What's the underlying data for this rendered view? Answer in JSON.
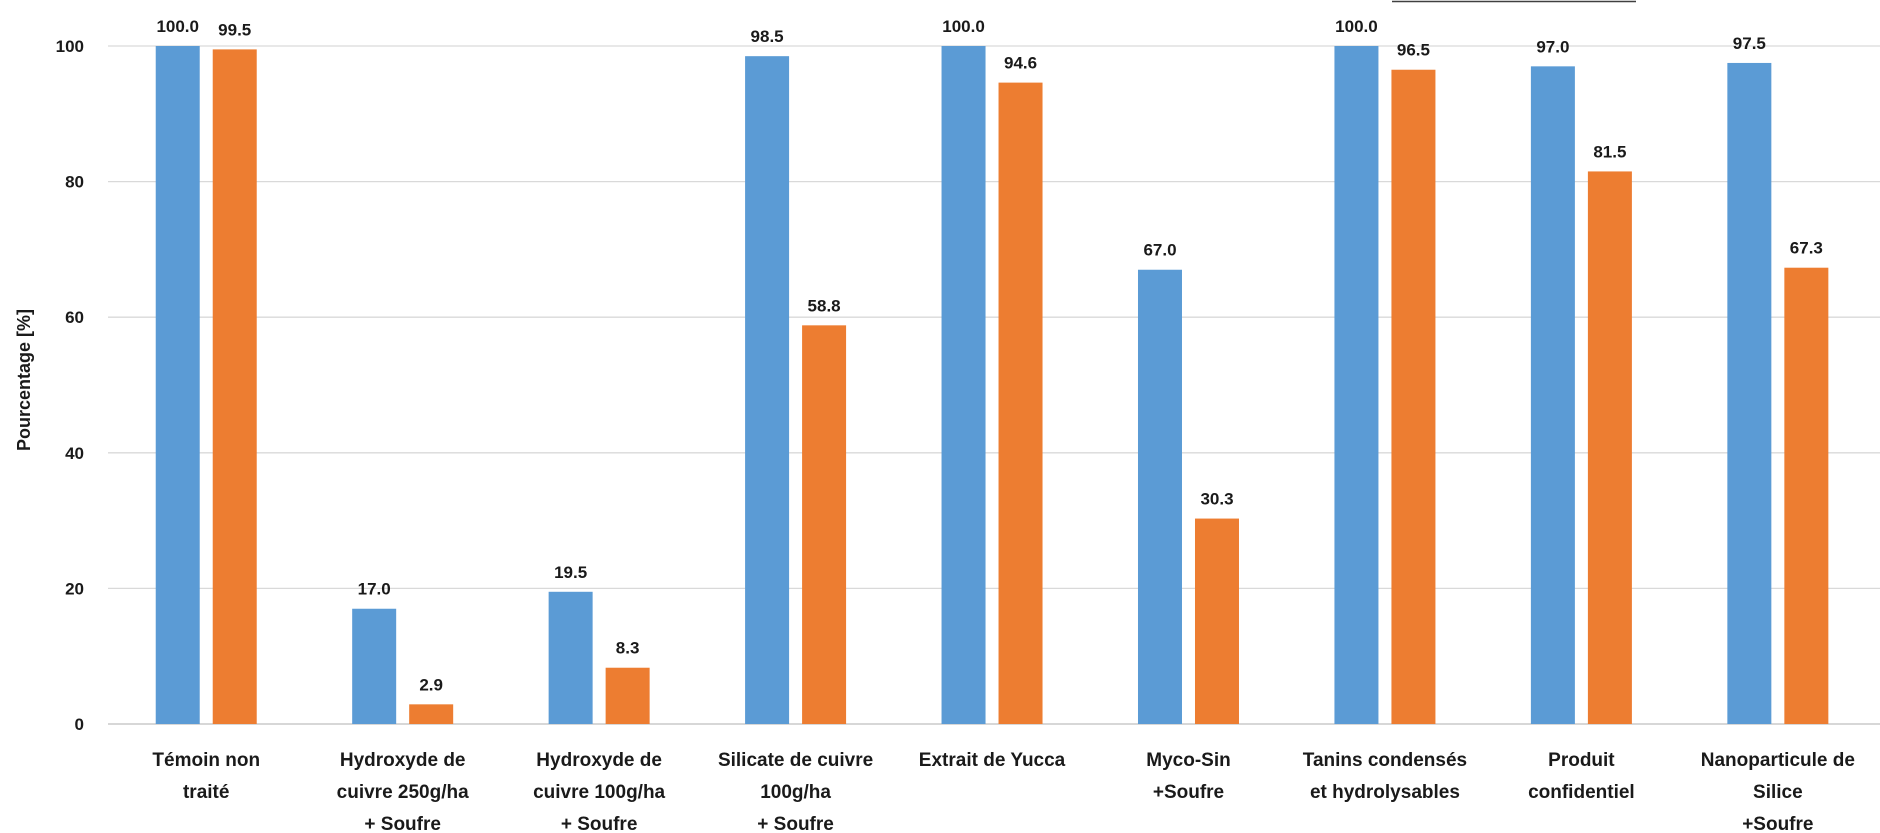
{
  "chart_data": {
    "type": "bar",
    "ylabel": "Pourcentage [%]",
    "ylim": [
      0,
      100
    ],
    "yticks": [
      "0",
      "20",
      "40",
      "60",
      "80",
      "100"
    ],
    "grid": true,
    "categories": [
      [
        "Témoin non",
        "traité"
      ],
      [
        "Hydroxyde de",
        "cuivre 250g/ha",
        "+ Soufre"
      ],
      [
        "Hydroxyde de",
        "cuivre 100g/ha",
        "+ Soufre"
      ],
      [
        "Silicate de cuivre",
        "100g/ha",
        "+ Soufre"
      ],
      [
        "Extrait de Yucca"
      ],
      [
        "Myco-Sin",
        "+Soufre"
      ],
      [
        "Tanins condensés",
        "et hydrolysables"
      ],
      [
        "Produit",
        "confidentiel"
      ],
      [
        "Nanoparticule de",
        "Silice",
        "+Soufre"
      ]
    ],
    "series": [
      {
        "color": "#5B9BD5",
        "values": [
          100.0,
          17.0,
          19.5,
          98.5,
          100.0,
          67.0,
          100.0,
          97.0,
          97.5
        ],
        "labels": [
          "100.0",
          "17.0",
          "19.5",
          "98.5",
          "100.0",
          "67.0",
          "100.0",
          "97.0",
          "97.5"
        ]
      },
      {
        "color": "#ED7D31",
        "values": [
          99.5,
          2.9,
          8.3,
          58.8,
          94.6,
          30.3,
          96.5,
          81.5,
          67.3
        ],
        "labels": [
          "99.5",
          "2.9",
          "8.3",
          "58.8",
          "94.6",
          "30.3",
          "96.5",
          "81.5",
          "67.3"
        ]
      }
    ]
  }
}
